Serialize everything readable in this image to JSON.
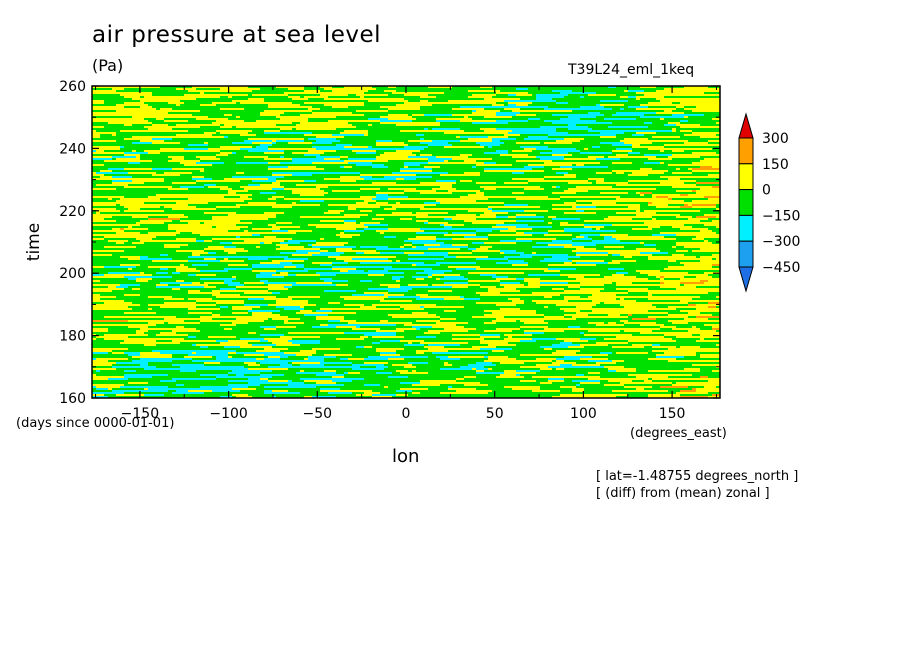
{
  "chart_data": {
    "type": "heatmap",
    "title": "air pressure at sea level",
    "units": "(Pa)",
    "run_label": "T39L24_eml_1keq",
    "xlabel": "lon",
    "ylabel": "time",
    "x_units": "(degrees_east)",
    "y_units": "(days since 0000-01-01)",
    "notes": [
      "[ lat=-1.48755 degrees_north ]",
      "[ (diff) from (mean) zonal ]"
    ],
    "xlim": [
      -177,
      177
    ],
    "ylim": [
      160,
      260
    ],
    "x_ticks": [
      -150,
      -100,
      -50,
      0,
      50,
      100,
      150
    ],
    "y_ticks": [
      160,
      180,
      200,
      220,
      240,
      260
    ],
    "colorbar": {
      "levels": [
        -450,
        -300,
        -150,
        0,
        150,
        300
      ],
      "colors": [
        "#1e6fe6",
        "#1ea0f0",
        "#00f0ff",
        "#00e000",
        "#ffff00",
        "#ffa000",
        "#e00000"
      ],
      "labels": [
        "300",
        "150",
        "0",
        "-150",
        "-300",
        "-450"
      ]
    }
  }
}
